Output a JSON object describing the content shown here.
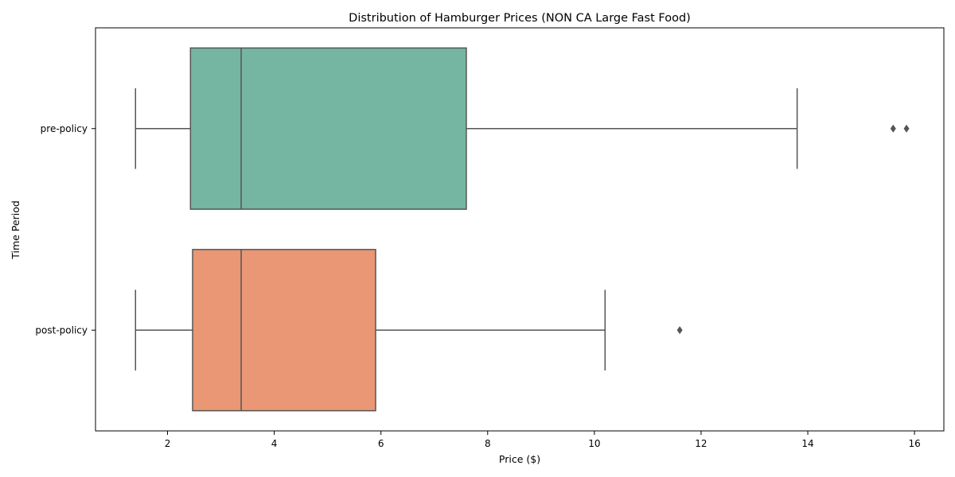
{
  "chart_data": {
    "type": "boxplot",
    "orientation": "horizontal",
    "title": "Distribution of Hamburger Prices (NON CA Large Fast Food)",
    "xlabel": "Price ($)",
    "ylabel": "Time Period",
    "xlim": [
      0.65,
      16.55
    ],
    "xticks": [
      2,
      4,
      6,
      8,
      10,
      12,
      14,
      16
    ],
    "grid": false,
    "legend": "none",
    "colors": {
      "pre-policy": "#74b6a1",
      "post-policy": "#e99774",
      "line": "#555555"
    },
    "series": [
      {
        "name": "pre-policy",
        "whisker_low": 1.4,
        "q1": 2.43,
        "median": 3.38,
        "q3": 7.6,
        "whisker_high": 13.8,
        "outliers": [
          15.6,
          15.85
        ]
      },
      {
        "name": "post-policy",
        "whisker_low": 1.4,
        "q1": 2.47,
        "median": 3.38,
        "q3": 5.9,
        "whisker_high": 10.2,
        "outliers": [
          11.6
        ]
      }
    ]
  }
}
